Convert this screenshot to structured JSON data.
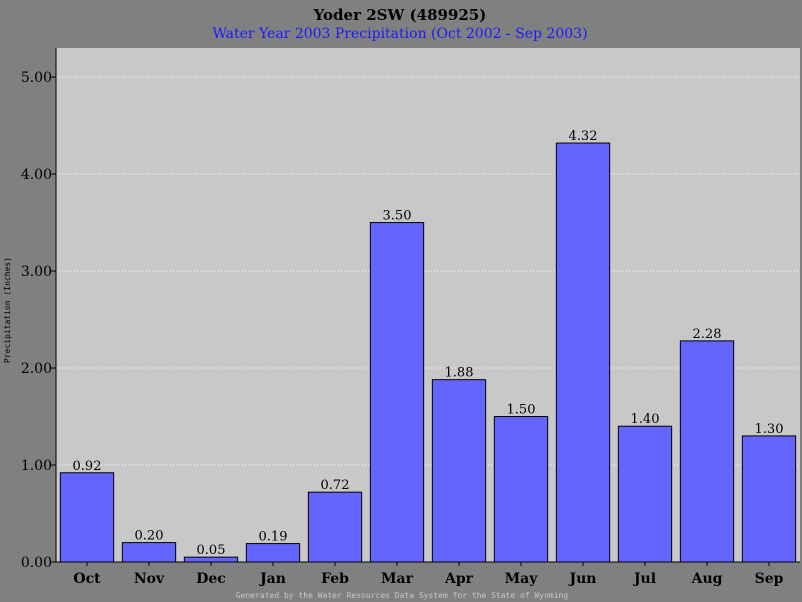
{
  "chart_data": {
    "type": "bar",
    "title": "Yoder 2SW (489925)",
    "subtitle": "Water Year 2003 Precipitation (Oct 2002 - Sep 2003)",
    "ylabel": "Precipitation (Inches)",
    "xlabel": "",
    "footer": "Generated by the Water Resources Data System for the State of Wyoming",
    "categories": [
      "Oct",
      "Nov",
      "Dec",
      "Jan",
      "Feb",
      "Mar",
      "Apr",
      "May",
      "Jun",
      "Jul",
      "Aug",
      "Sep"
    ],
    "values": [
      0.92,
      0.2,
      0.05,
      0.19,
      0.72,
      3.5,
      1.88,
      1.5,
      4.32,
      1.4,
      2.28,
      1.3
    ],
    "value_labels": [
      "0.92",
      "0.20",
      "0.05",
      "0.19",
      "0.72",
      "3.50",
      "1.88",
      "1.50",
      "4.32",
      "1.40",
      "2.28",
      "1.30"
    ],
    "ylim": [
      0,
      5.3
    ],
    "yticks": [
      0,
      1,
      2,
      3,
      4,
      5
    ],
    "ytick_labels": [
      "0.00",
      "1.00",
      "2.00",
      "3.00",
      "4.00",
      "5.00"
    ],
    "grid": true,
    "colors": {
      "background": "#808080",
      "plot_area": "#c8c8c8",
      "bar": "#6464ff",
      "subtitle": "#1a1aff",
      "grid": "#ffffff"
    }
  }
}
